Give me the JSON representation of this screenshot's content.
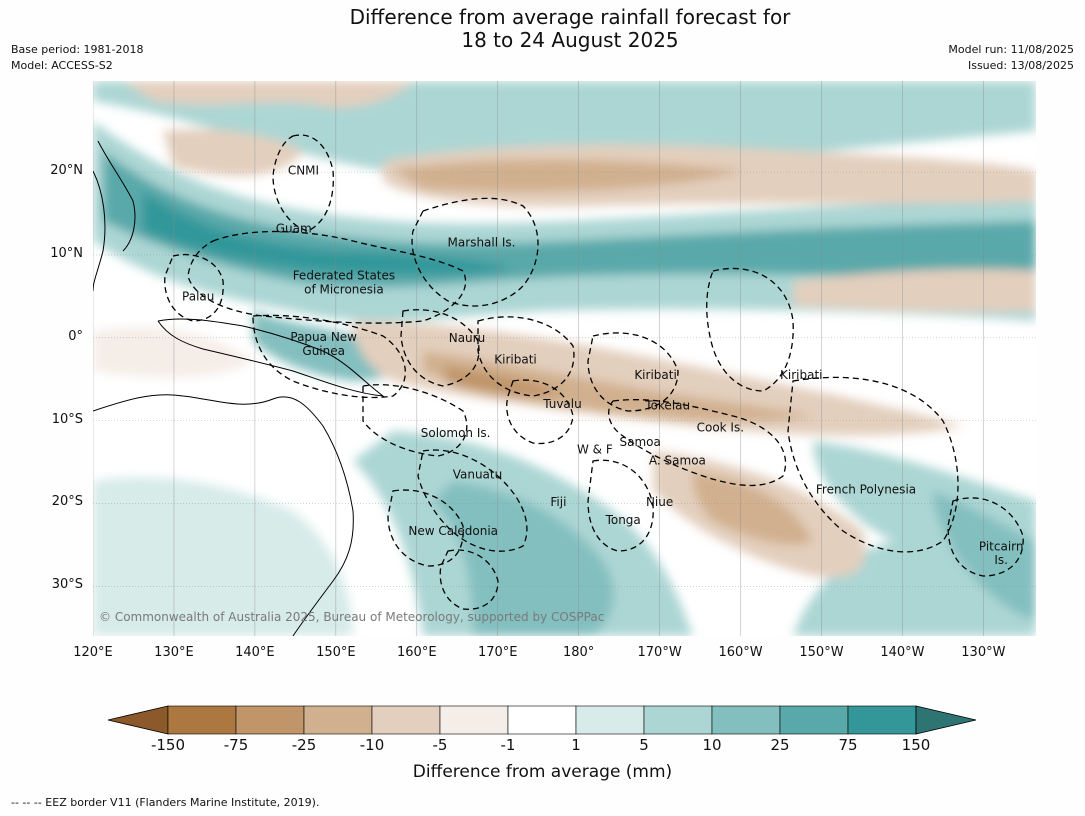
{
  "title": {
    "line1": "Difference from average rainfall forecast for",
    "line2": "18 to 24 August 2025"
  },
  "meta": {
    "base_period": "Base period: 1981-2018",
    "model": "Model: ACCESS-S2",
    "model_run": "Model run: 11/08/2025",
    "issued": "Issued: 13/08/2025"
  },
  "axes": {
    "lat_labels": [
      "20°N",
      "10°N",
      "0°",
      "10°S",
      "20°S",
      "30°S"
    ],
    "lon_labels": [
      "120°E",
      "130°E",
      "140°E",
      "150°E",
      "160°E",
      "170°E",
      "180°",
      "170°W",
      "160°W",
      "150°W",
      "140°W",
      "130°W"
    ],
    "lat_range": [
      -36,
      31
    ],
    "lon_range_east": [
      120,
      236.5
    ]
  },
  "map_labels": [
    {
      "text": "CNMI",
      "lon": 146,
      "lat": 20.2
    },
    {
      "text": "Guam",
      "lon": 144.8,
      "lat": 13.2
    },
    {
      "text": "Marshall Is.",
      "lon": 168,
      "lat": 11.5
    },
    {
      "text": "Federated States",
      "lon": 151,
      "lat": 7.5
    },
    {
      "text": "of Micronesia",
      "lon": 151,
      "lat": 5.8
    },
    {
      "text": "Palau",
      "lon": 133,
      "lat": 5
    },
    {
      "text": "Papua New",
      "lon": 148.5,
      "lat": 0.1
    },
    {
      "text": "Guinea",
      "lon": 148.5,
      "lat": -1.6
    },
    {
      "text": "Nauru",
      "lon": 166.2,
      "lat": 0
    },
    {
      "text": "Kiribati",
      "lon": 172.2,
      "lat": -2.6
    },
    {
      "text": "Kiribati",
      "lon": 189.5,
      "lat": -4.5
    },
    {
      "text": "Kiribati",
      "lon": 207.5,
      "lat": -4.5
    },
    {
      "text": "Tuvalu",
      "lon": 178,
      "lat": -8
    },
    {
      "text": "Tokelau",
      "lon": 191,
      "lat": -8.2
    },
    {
      "text": "Cook Is.",
      "lon": 197.5,
      "lat": -10.8
    },
    {
      "text": "Solomon Is.",
      "lon": 164.8,
      "lat": -11.5
    },
    {
      "text": "Samoa",
      "lon": 187.6,
      "lat": -12.6
    },
    {
      "text": "W & F",
      "lon": 182,
      "lat": -13.5
    },
    {
      "text": "A. Samoa",
      "lon": 192.2,
      "lat": -14.8
    },
    {
      "text": "Vanuatu",
      "lon": 167.5,
      "lat": -16.5
    },
    {
      "text": "French Polynesia",
      "lon": 215.5,
      "lat": -18.3
    },
    {
      "text": "Niue",
      "lon": 190,
      "lat": -19.8
    },
    {
      "text": "Fiji",
      "lon": 177.5,
      "lat": -19.8
    },
    {
      "text": "Tonga",
      "lon": 185.5,
      "lat": -22
    },
    {
      "text": "New Caledonia",
      "lon": 164.5,
      "lat": -23.3
    },
    {
      "text": "Pitcairn",
      "lon": 232.2,
      "lat": -25.2
    },
    {
      "text": "Is.",
      "lon": 232.2,
      "lat": -26.8
    }
  ],
  "copyright": "© Commonwealth of Australia 2025, Bureau of Meteorology, supported by COSPPac",
  "colorbar": {
    "ticks": [
      "-150",
      "-75",
      "-25",
      "-10",
      "-5",
      "-1",
      "1",
      "5",
      "10",
      "25",
      "75",
      "150"
    ],
    "colors": [
      "#8c5a2a",
      "#ad7740",
      "#c0956a",
      "#d1b08f",
      "#e3cfbd",
      "#f5eee8",
      "#ffffff",
      "#d7ebe9",
      "#acd6d4",
      "#84bfbf",
      "#5aa9aa",
      "#33979a",
      "#2d7473"
    ],
    "label": "Difference from average (mm)"
  },
  "footnote": "--  --  -- EEZ border V11 (Flanders Marine Institute, 2019)."
}
